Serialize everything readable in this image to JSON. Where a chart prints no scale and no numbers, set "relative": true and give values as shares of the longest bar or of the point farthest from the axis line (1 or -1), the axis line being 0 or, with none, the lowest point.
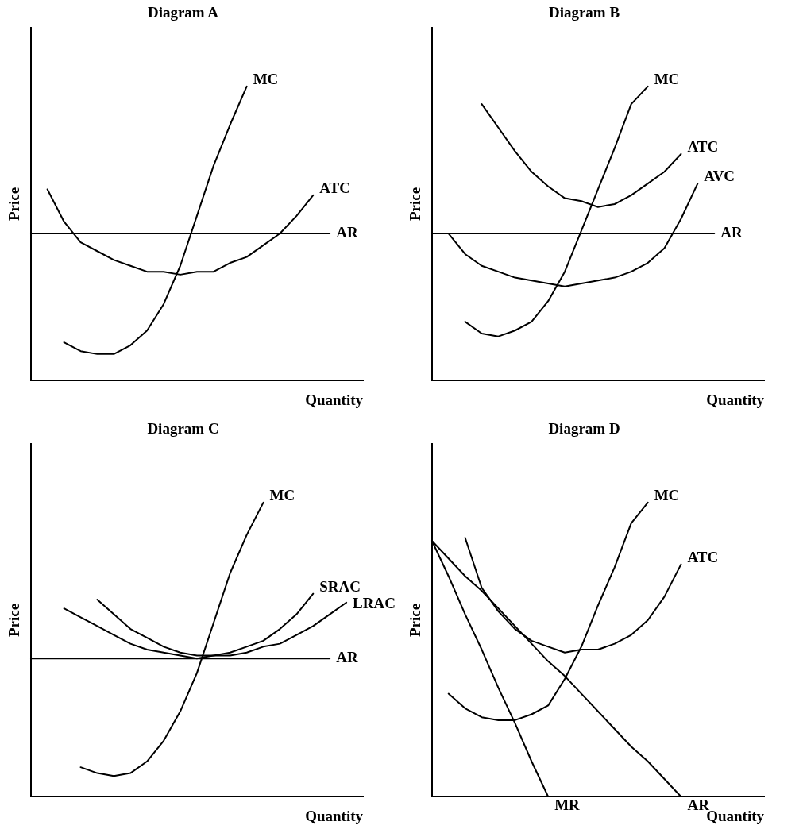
{
  "chart_data": [
    {
      "type": "line",
      "title": "Diagram A",
      "xlabel": "Quantity",
      "ylabel": "Price",
      "relative": true,
      "legend": false,
      "grid": false,
      "marker": "none",
      "line_style": "solid",
      "categories": [
        null,
        null,
        null,
        null,
        null,
        null,
        null,
        null,
        null,
        null,
        null,
        null,
        null,
        null,
        null,
        null,
        null,
        null,
        null,
        null,
        null
      ],
      "series": [
        {
          "name": "MC",
          "color": "#000000",
          "values": [
            null,
            null,
            0.13,
            0.1,
            0.09,
            0.09,
            0.12,
            0.17,
            0.26,
            0.39,
            0.56,
            0.73,
            0.87,
            1.0,
            null,
            null,
            null,
            null,
            null,
            null,
            null
          ]
        },
        {
          "name": "ATC",
          "color": "#000000",
          "values": [
            null,
            0.65,
            0.54,
            0.47,
            0.44,
            0.41,
            0.39,
            0.37,
            0.37,
            0.36,
            0.37,
            0.37,
            0.4,
            0.42,
            0.46,
            0.5,
            0.56,
            0.63,
            null,
            null,
            null
          ]
        },
        {
          "name": "AR",
          "color": "#000000",
          "values": [
            0.5,
            0.5,
            0.5,
            0.5,
            0.5,
            0.5,
            0.5,
            0.5,
            0.5,
            0.5,
            0.5,
            0.5,
            0.5,
            0.5,
            0.5,
            0.5,
            0.5,
            0.5,
            0.5,
            null,
            null
          ]
        }
      ]
    },
    {
      "type": "line",
      "title": "Diagram B",
      "xlabel": "Quantity",
      "ylabel": "Price",
      "relative": true,
      "legend": false,
      "grid": false,
      "marker": "none",
      "line_style": "solid",
      "categories": [
        null,
        null,
        null,
        null,
        null,
        null,
        null,
        null,
        null,
        null,
        null,
        null,
        null,
        null,
        null,
        null,
        null,
        null,
        null,
        null,
        null
      ],
      "series": [
        {
          "name": "MC",
          "color": "#000000",
          "values": [
            null,
            null,
            0.2,
            0.16,
            0.15,
            0.17,
            0.2,
            0.27,
            0.37,
            0.51,
            0.65,
            0.79,
            0.94,
            1.0,
            null,
            null,
            null,
            null,
            null,
            null,
            null
          ]
        },
        {
          "name": "ATC",
          "color": "#000000",
          "values": [
            null,
            null,
            null,
            0.94,
            0.86,
            0.78,
            0.71,
            0.66,
            0.62,
            0.61,
            0.59,
            0.6,
            0.63,
            0.67,
            0.71,
            0.77,
            null,
            null,
            null,
            null,
            null
          ]
        },
        {
          "name": "AVC",
          "color": "#000000",
          "values": [
            null,
            0.5,
            0.43,
            0.39,
            0.37,
            0.35,
            0.34,
            0.33,
            0.32,
            0.33,
            0.34,
            0.35,
            0.37,
            0.4,
            0.45,
            0.55,
            0.67,
            null,
            null,
            null,
            null
          ]
        },
        {
          "name": "AR",
          "color": "#000000",
          "values": [
            0.5,
            0.5,
            0.5,
            0.5,
            0.5,
            0.5,
            0.5,
            0.5,
            0.5,
            0.5,
            0.5,
            0.5,
            0.5,
            0.5,
            0.5,
            0.5,
            0.5,
            0.5,
            null,
            null,
            null
          ]
        }
      ]
    },
    {
      "type": "line",
      "title": "Diagram C",
      "xlabel": "Quantity",
      "ylabel": "Price",
      "relative": true,
      "legend": false,
      "grid": false,
      "marker": "none",
      "line_style": "solid",
      "categories": [
        null,
        null,
        null,
        null,
        null,
        null,
        null,
        null,
        null,
        null,
        null,
        null,
        null,
        null,
        null,
        null,
        null,
        null,
        null,
        null,
        null
      ],
      "series": [
        {
          "name": "MC",
          "color": "#000000",
          "values": [
            null,
            null,
            null,
            0.1,
            0.08,
            0.07,
            0.08,
            0.12,
            0.19,
            0.29,
            0.42,
            0.59,
            0.76,
            0.89,
            1.0,
            null,
            null,
            null,
            null,
            null,
            null
          ]
        },
        {
          "name": "SRAC",
          "color": "#000000",
          "values": [
            null,
            null,
            null,
            null,
            0.67,
            0.62,
            0.57,
            0.54,
            0.51,
            0.49,
            0.48,
            0.48,
            0.49,
            0.51,
            0.53,
            0.57,
            0.62,
            0.69,
            null,
            null,
            null
          ]
        },
        {
          "name": "LRAC",
          "color": "#000000",
          "values": [
            null,
            null,
            0.64,
            0.61,
            0.58,
            0.55,
            0.52,
            0.5,
            0.49,
            0.48,
            0.47,
            0.48,
            0.48,
            0.49,
            0.51,
            0.52,
            0.55,
            0.58,
            0.62,
            0.66,
            null
          ]
        },
        {
          "name": "AR",
          "color": "#000000",
          "values": [
            0.47,
            0.47,
            0.47,
            0.47,
            0.47,
            0.47,
            0.47,
            0.47,
            0.47,
            0.47,
            0.47,
            0.47,
            0.47,
            0.47,
            0.47,
            0.47,
            0.47,
            0.47,
            0.47,
            null,
            null
          ]
        }
      ]
    },
    {
      "type": "line",
      "title": "Diagram D",
      "xlabel": "Quantity",
      "ylabel": "Price",
      "relative": true,
      "legend": false,
      "grid": false,
      "marker": "none",
      "line_style": "solid",
      "categories": [
        null,
        null,
        null,
        null,
        null,
        null,
        null,
        null,
        null,
        null,
        null,
        null,
        null,
        null,
        null,
        null,
        null,
        null,
        null,
        null,
        null
      ],
      "series": [
        {
          "name": "MC",
          "color": "#000000",
          "values": [
            null,
            0.35,
            0.3,
            0.27,
            0.26,
            0.26,
            0.28,
            0.31,
            0.4,
            0.51,
            0.65,
            0.78,
            0.93,
            1.0,
            null,
            null,
            null,
            null,
            null,
            null,
            null
          ]
        },
        {
          "name": "ATC",
          "color": "#000000",
          "values": [
            null,
            null,
            0.88,
            0.71,
            0.63,
            0.57,
            0.53,
            0.51,
            0.49,
            0.5,
            0.5,
            0.52,
            0.55,
            0.6,
            0.68,
            0.79,
            null,
            null,
            null,
            null,
            null
          ]
        },
        {
          "name": "MR",
          "color": "#000000",
          "values": [
            0.87,
            0.75,
            0.62,
            0.5,
            0.37,
            0.25,
            0.12,
            0,
            null,
            null,
            null,
            null,
            null,
            null,
            null,
            null,
            null,
            null,
            null,
            null,
            null
          ]
        },
        {
          "name": "AR",
          "color": "#000000",
          "values": [
            0.87,
            0.81,
            0.75,
            0.7,
            0.64,
            0.58,
            0.52,
            0.46,
            0.41,
            0.35,
            0.29,
            0.23,
            0.17,
            0.12,
            0.06,
            0,
            null,
            null,
            null,
            null,
            null
          ]
        }
      ]
    }
  ]
}
